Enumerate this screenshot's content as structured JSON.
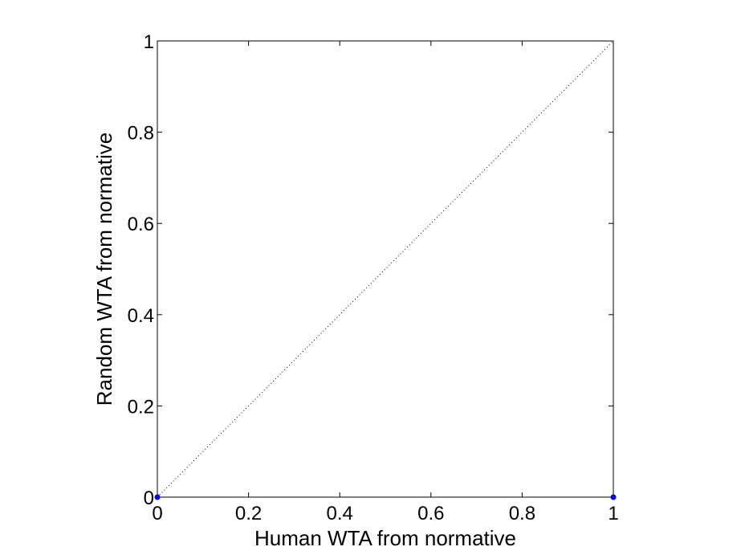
{
  "chart_data": {
    "type": "scatter",
    "title": "",
    "xlabel": "Human WTA from normative",
    "ylabel": "Random WTA from normative",
    "xlim": [
      0,
      1
    ],
    "ylim": [
      0,
      1
    ],
    "xticks": [
      0,
      0.2,
      0.4,
      0.6,
      0.8,
      1
    ],
    "yticks": [
      0,
      0.2,
      0.4,
      0.6,
      0.8,
      1
    ],
    "xtick_labels": [
      "0",
      "0.2",
      "0.4",
      "0.6",
      "0.8",
      "1"
    ],
    "ytick_labels": [
      "0",
      "0.2",
      "0.4",
      "0.6",
      "0.8",
      "1"
    ],
    "grid": false,
    "legend": "none",
    "reference_line": {
      "x": [
        0,
        1
      ],
      "y": [
        0,
        1
      ],
      "style": "dotted",
      "color": "#000000"
    },
    "series": [
      {
        "x": [
          0,
          1
        ],
        "y": [
          0,
          0
        ],
        "color": "#0000ff",
        "marker": "dot"
      }
    ]
  }
}
